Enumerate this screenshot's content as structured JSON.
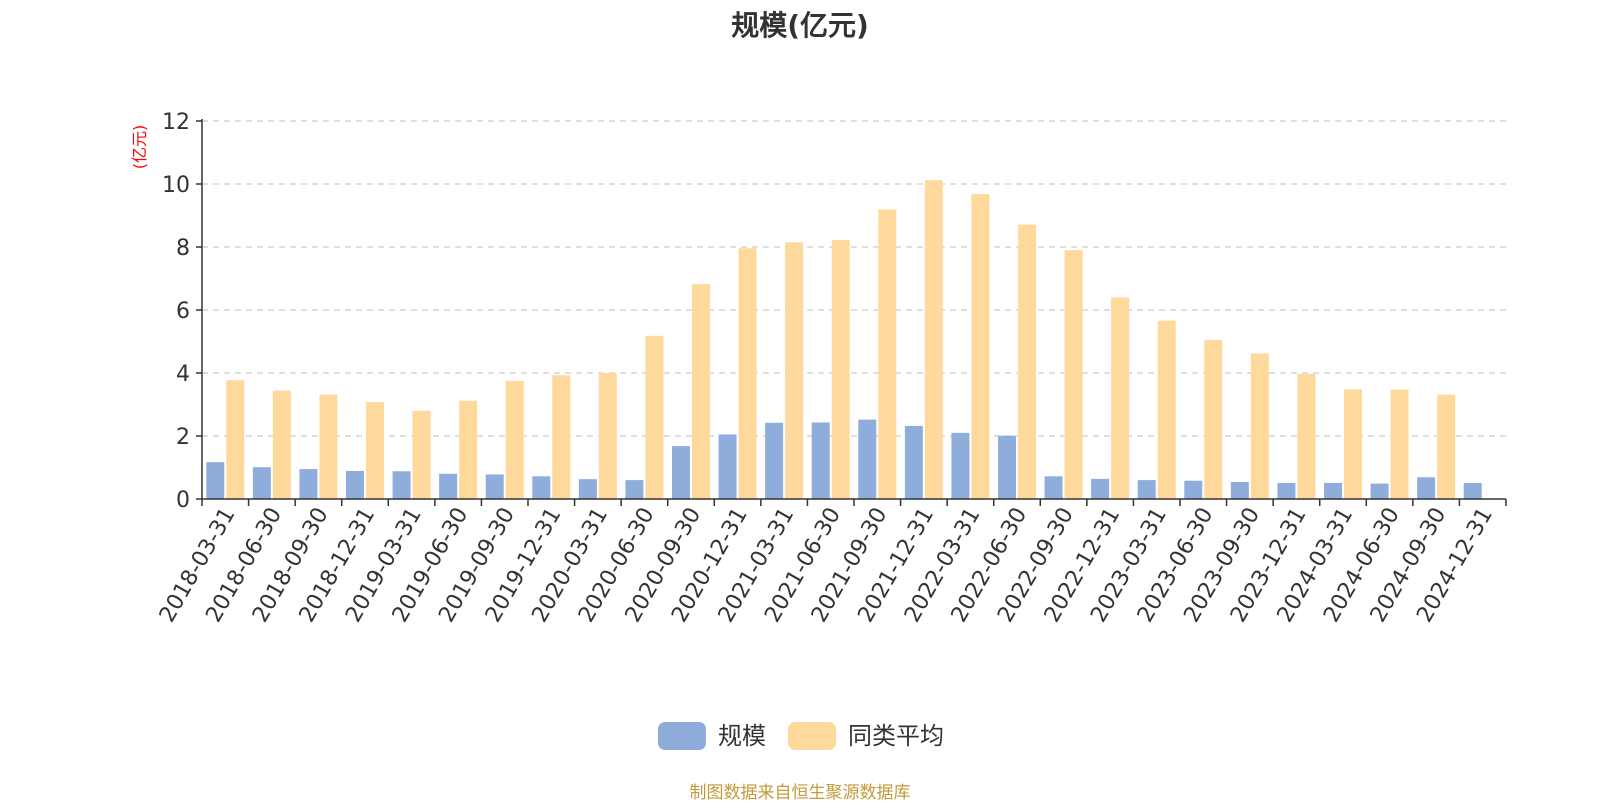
{
  "chart_data": {
    "type": "bar",
    "title": "规模(亿元)",
    "ylabel": "(亿元)",
    "ylim": [
      0,
      12
    ],
    "yticks": [
      0,
      2,
      4,
      6,
      8,
      10,
      12
    ],
    "grid": true,
    "legend_position": "bottom-center",
    "categories": [
      "2018-03-31",
      "2018-06-30",
      "2018-09-30",
      "2018-12-31",
      "2019-03-31",
      "2019-06-30",
      "2019-09-30",
      "2019-12-31",
      "2020-03-31",
      "2020-06-30",
      "2020-09-30",
      "2020-12-31",
      "2021-03-31",
      "2021-06-30",
      "2021-09-30",
      "2021-12-31",
      "2022-03-31",
      "2022-06-30",
      "2022-09-30",
      "2022-12-31",
      "2023-03-31",
      "2023-06-30",
      "2023-09-30",
      "2023-12-31",
      "2024-03-31",
      "2024-06-30",
      "2024-09-30",
      "2024-12-31"
    ],
    "series": [
      {
        "name": "规模",
        "color": "#8eaddb",
        "values": [
          1.17,
          1.01,
          0.95,
          0.89,
          0.88,
          0.8,
          0.78,
          0.72,
          0.63,
          0.6,
          1.68,
          2.05,
          2.42,
          2.43,
          2.52,
          2.32,
          2.1,
          2.01,
          0.72,
          0.64,
          0.6,
          0.58,
          0.54,
          0.51,
          0.51,
          0.49,
          0.69,
          0.51
        ]
      },
      {
        "name": "同类平均",
        "color": "#ffd99b",
        "values": [
          3.77,
          3.44,
          3.31,
          3.08,
          2.8,
          3.12,
          3.75,
          3.93,
          4.0,
          5.18,
          6.82,
          7.96,
          8.15,
          8.22,
          9.19,
          10.12,
          9.68,
          8.71,
          7.9,
          6.4,
          5.66,
          5.05,
          4.62,
          3.97,
          3.48,
          3.47,
          3.31,
          null
        ]
      }
    ]
  },
  "footer": {
    "source": "制图数据来自恒生聚源数据库",
    "source_color": "#c49a3a"
  },
  "colors": {
    "axis": "#333333",
    "grid": "#cccccc",
    "unit_label": "#ff0000"
  }
}
